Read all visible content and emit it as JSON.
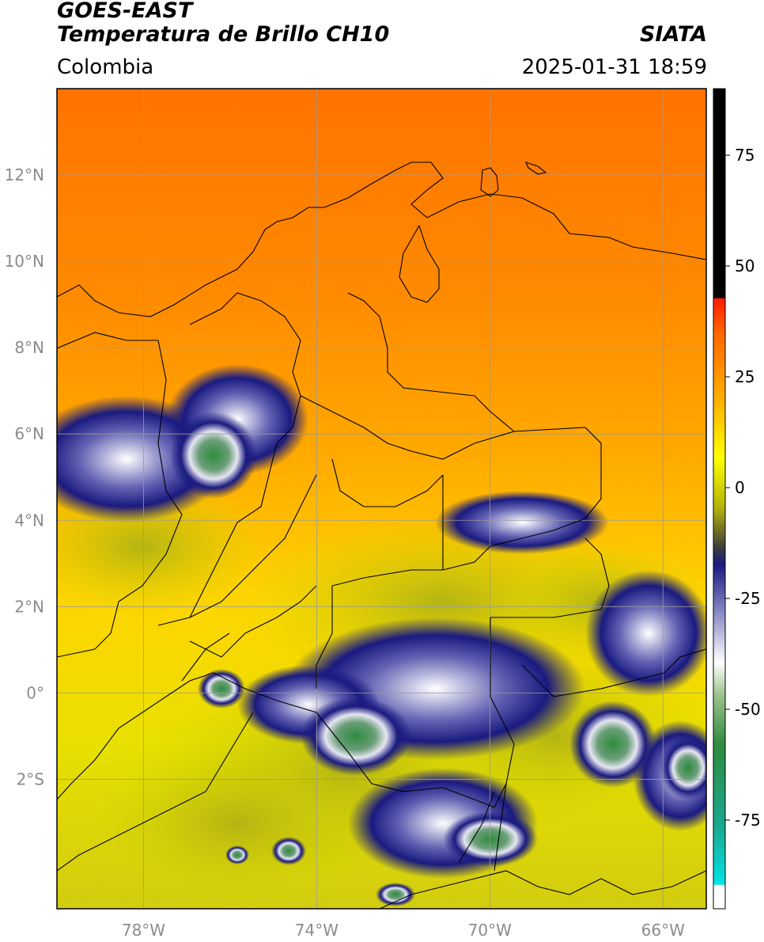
{
  "header": {
    "satellite": "GOES-EAST",
    "product": "Temperatura de Brillo CH10",
    "organization": "SIATA",
    "region": "Colombia",
    "datetime": "2025-01-31 18:59"
  },
  "map": {
    "lon_range": [
      -80,
      -65
    ],
    "lat_range": [
      -5,
      14
    ],
    "lat_ticks": [
      {
        "value": 12,
        "label": "12°N"
      },
      {
        "value": 10,
        "label": "10°N"
      },
      {
        "value": 8,
        "label": "8°N"
      },
      {
        "value": 6,
        "label": "6°N"
      },
      {
        "value": 4,
        "label": "4°N"
      },
      {
        "value": 2,
        "label": "2°N"
      },
      {
        "value": 0,
        "label": "0°"
      },
      {
        "value": -2,
        "label": "2°S"
      }
    ],
    "lon_ticks": [
      {
        "value": -78,
        "label": "78°W"
      },
      {
        "value": -74,
        "label": "74°W"
      },
      {
        "value": -70,
        "label": "70°W"
      },
      {
        "value": -66,
        "label": "66°W"
      }
    ],
    "grid": true,
    "colors": {
      "warm": "#ff7a00",
      "mid": "#ffc400",
      "cool": "#e8e800",
      "cold": "#1a1a80",
      "coldest": "#2e8b3e"
    }
  },
  "colorbar": {
    "ticks": [
      {
        "value": 75,
        "label": "75"
      },
      {
        "value": 50,
        "label": "50"
      },
      {
        "value": 25,
        "label": "25"
      },
      {
        "value": 0,
        "label": "0"
      },
      {
        "value": -25,
        "label": "-25"
      },
      {
        "value": -50,
        "label": "-50"
      },
      {
        "value": -75,
        "label": "-75"
      }
    ],
    "range": [
      -95,
      90
    ]
  }
}
